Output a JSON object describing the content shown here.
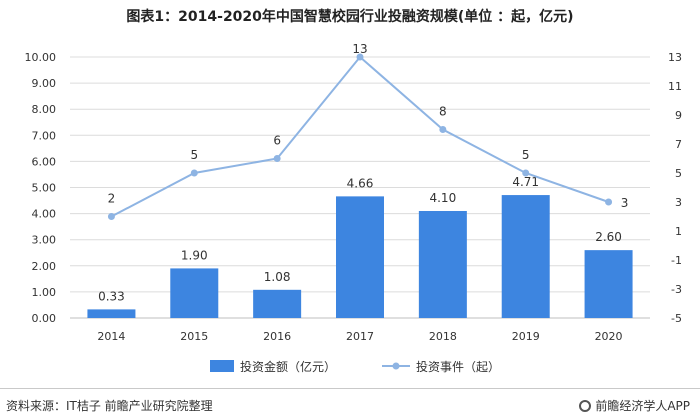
{
  "title": "图表1：2014-2020年中国智慧校园行业投融资规模(单位 ：起，亿元)",
  "footer": {
    "source": "资料来源：IT桔子 前瞻产业研究院整理",
    "brand": "前瞻经济学人APP"
  },
  "colors": {
    "bar": "#3d85e0",
    "line": "#8eb4e3",
    "grid": "#dcdcdc",
    "axis_text": "#333333"
  },
  "chart_data": {
    "type": "bar",
    "categories": [
      "2014",
      "2015",
      "2016",
      "2017",
      "2018",
      "2019",
      "2020"
    ],
    "series": [
      {
        "name": "投资金额（亿元）",
        "type": "bar",
        "axis": "left",
        "values": [
          0.33,
          1.9,
          1.08,
          4.66,
          4.1,
          4.71,
          2.6
        ],
        "labels": [
          "0.33",
          "1.90",
          "1.08",
          "4.66",
          "4.10",
          "4.71",
          "2.60"
        ]
      },
      {
        "name": "投资事件（起）",
        "type": "line",
        "axis": "right",
        "values": [
          2,
          5,
          6,
          13,
          8,
          5,
          3
        ],
        "labels": [
          "2",
          "5",
          "6",
          "13",
          "8",
          "5",
          "3"
        ]
      }
    ],
    "y_left": {
      "ylim": [
        0,
        10
      ],
      "ticks": [
        "0.00",
        "1.00",
        "2.00",
        "3.00",
        "4.00",
        "5.00",
        "6.00",
        "7.00",
        "8.00",
        "9.00",
        "10.00"
      ]
    },
    "y_right": {
      "ylim": [
        -5,
        13
      ],
      "ticks": [
        "-5",
        "-3",
        "-1",
        "1",
        "3",
        "5",
        "7",
        "9",
        "11",
        "13"
      ]
    },
    "grid": true,
    "legend": "bottom"
  }
}
